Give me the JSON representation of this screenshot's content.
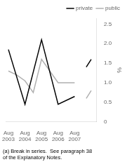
{
  "chart_data": {
    "type": "line",
    "y_label": "%",
    "note": "(a) Break in series.  See paragraph 38\nof the Explanatory Notes.",
    "xlim": [
      -0.15,
      5.3
    ],
    "xticks": [
      {
        "value": 0,
        "label": "Aug\n2003"
      },
      {
        "value": 1,
        "label": "Aug\n2004"
      },
      {
        "value": 2,
        "label": "Aug\n2005"
      },
      {
        "value": 3,
        "label": "Aug\n2006"
      },
      {
        "value": 4,
        "label": "Aug\n2007"
      }
    ],
    "ylim": [
      0,
      2.65
    ],
    "yticks": [
      0,
      0.5,
      {
        "value": 1,
        "label": "1.0"
      },
      1.5,
      {
        "value": 2,
        "label": "2.0"
      },
      2.5
    ],
    "grid": false,
    "legend": "top",
    "series": [
      {
        "name": "private",
        "color": "#000000",
        "x": [
          0,
          1,
          2,
          3,
          4,
          null,
          4.7,
          5.0
        ],
        "values": [
          1.85,
          0.45,
          2.1,
          0.45,
          0.65,
          null,
          1.4,
          1.6
        ]
      },
      {
        "name": "public",
        "color": "#b0b0b0",
        "x": [
          0,
          0.5,
          1,
          1.5,
          2,
          3,
          4,
          null,
          4.7,
          5.0
        ],
        "values": [
          1.3,
          1.2,
          1.05,
          0.75,
          1.6,
          1.0,
          1.0,
          null,
          0.6,
          0.8
        ]
      }
    ]
  }
}
